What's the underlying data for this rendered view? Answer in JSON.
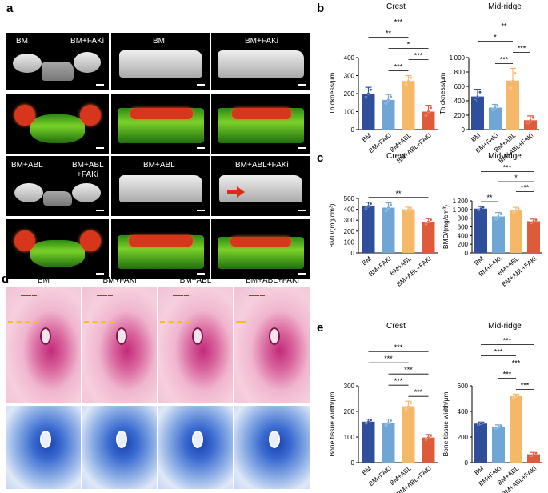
{
  "panel_labels": {
    "a": "a",
    "b": "b",
    "c": "c",
    "d": "d",
    "e": "e"
  },
  "panel_a": {
    "row1": [
      "BM",
      "BM+FAKi",
      "BM",
      "BM+FAKi"
    ],
    "row3_left_a": "BM+ABL",
    "row3_left_b": "BM+ABL",
    "row3_left_c": "+FAKi",
    "row3_mid": "BM+ABL",
    "row3_right": "BM+ABL+FAKi"
  },
  "panel_d": {
    "groups": [
      "BM",
      "BM+FAKi",
      "BM+ABL",
      "BM+ABL+FAKi"
    ]
  },
  "colors": {
    "BM": "#2f4e9b",
    "BM+FAKi": "#6fa6d4",
    "BM+ABL": "#f5b768",
    "BM+ABL+FAKi": "#dd5a3a"
  },
  "chart_data": [
    {
      "id": "b_crest",
      "type": "bar",
      "title": "Crest",
      "ylabel": "Thickness/μm",
      "ylim": [
        0,
        400
      ],
      "ticks": [
        0,
        100,
        200,
        300,
        400
      ],
      "categories": [
        "BM",
        "BM+FAKi",
        "BM+ABL",
        "BM+ABL+FAKi"
      ],
      "values": [
        200,
        165,
        270,
        100
      ],
      "errors": [
        35,
        30,
        30,
        35
      ],
      "sig": [
        {
          "a": 0,
          "b": 3,
          "label": "***"
        },
        {
          "a": 1,
          "b": 3,
          "label": "*"
        },
        {
          "a": 0,
          "b": 2,
          "label": "**"
        },
        {
          "a": 1,
          "b": 2,
          "label": "***"
        },
        {
          "a": 2,
          "b": 3,
          "label": "***"
        }
      ]
    },
    {
      "id": "b_mid",
      "type": "bar",
      "title": "Mid-ridge",
      "ylabel": "Thickness/μm",
      "ylim": [
        0,
        1000
      ],
      "ticks": [
        0,
        200,
        400,
        600,
        800,
        1000
      ],
      "categories": [
        "BM",
        "BM+FAKi",
        "BM+ABL",
        "BM+ABL+FAKi"
      ],
      "values": [
        460,
        305,
        680,
        130
      ],
      "errors": [
        100,
        45,
        170,
        60
      ],
      "sig": [
        {
          "a": 0,
          "b": 3,
          "label": "**"
        },
        {
          "a": 0,
          "b": 2,
          "label": "*"
        },
        {
          "a": 1,
          "b": 2,
          "label": "***"
        },
        {
          "a": 2,
          "b": 3,
          "label": "***"
        }
      ]
    },
    {
      "id": "c_crest",
      "type": "bar",
      "title": "Crest",
      "ylabel": "BMD/(mg/cm³)",
      "ylim": [
        0,
        500
      ],
      "ticks": [
        0,
        100,
        200,
        300,
        400,
        500
      ],
      "categories": [
        "BM",
        "BM+FAKi",
        "BM+ABL",
        "BM+ABL+FAKi"
      ],
      "values": [
        430,
        415,
        400,
        285
      ],
      "errors": [
        35,
        45,
        20,
        30
      ],
      "sig": [
        {
          "a": 0,
          "b": 3,
          "label": "**"
        }
      ]
    },
    {
      "id": "c_mid",
      "type": "bar",
      "title": "Mid-ridge",
      "ylabel": "BMD/(mg/cm³)",
      "ylim": [
        0,
        1200
      ],
      "ticks": [
        0,
        200,
        400,
        600,
        800,
        1000,
        1200
      ],
      "categories": [
        "BM",
        "BM+FAKi",
        "BM+ABL",
        "BM+ABL+FAKi"
      ],
      "values": [
        1020,
        840,
        980,
        730
      ],
      "errors": [
        50,
        90,
        70,
        50
      ],
      "sig": [
        {
          "a": 0,
          "b": 3,
          "label": "***"
        },
        {
          "a": 1,
          "b": 3,
          "label": "*"
        },
        {
          "a": 0,
          "b": 1,
          "label": "**"
        },
        {
          "a": 2,
          "b": 3,
          "label": "***"
        }
      ]
    },
    {
      "id": "e_crest",
      "type": "bar",
      "title": "Crest",
      "ylabel": "Bone tissue width/μm",
      "ylim": [
        0,
        300
      ],
      "ticks": [
        0,
        100,
        200,
        300
      ],
      "categories": [
        "BM",
        "BM+FAKi",
        "BM+ABL",
        "BM+ABL+FAKi"
      ],
      "values": [
        160,
        155,
        220,
        98
      ],
      "errors": [
        10,
        15,
        20,
        12
      ],
      "sig": [
        {
          "a": 0,
          "b": 3,
          "label": "***"
        },
        {
          "a": 1,
          "b": 3,
          "label": "***"
        },
        {
          "a": 0,
          "b": 2,
          "label": "***"
        },
        {
          "a": 2,
          "b": 3,
          "label": "***"
        },
        {
          "a": 1,
          "b": 2,
          "label": "***"
        }
      ]
    },
    {
      "id": "e_mid",
      "type": "bar",
      "title": "Mid-ridge",
      "ylabel": "Bone tissue width/μm",
      "ylim": [
        0,
        600
      ],
      "ticks": [
        0,
        200,
        400,
        600
      ],
      "categories": [
        "BM",
        "BM+FAKi",
        "BM+ABL",
        "BM+ABL+FAKi"
      ],
      "values": [
        305,
        280,
        520,
        65
      ],
      "errors": [
        12,
        15,
        15,
        15
      ],
      "sig": [
        {
          "a": 0,
          "b": 3,
          "label": "***"
        },
        {
          "a": 1,
          "b": 3,
          "label": "***"
        },
        {
          "a": 0,
          "b": 2,
          "label": "***"
        },
        {
          "a": 2,
          "b": 3,
          "label": "***"
        },
        {
          "a": 1,
          "b": 2,
          "label": "***"
        }
      ]
    }
  ]
}
